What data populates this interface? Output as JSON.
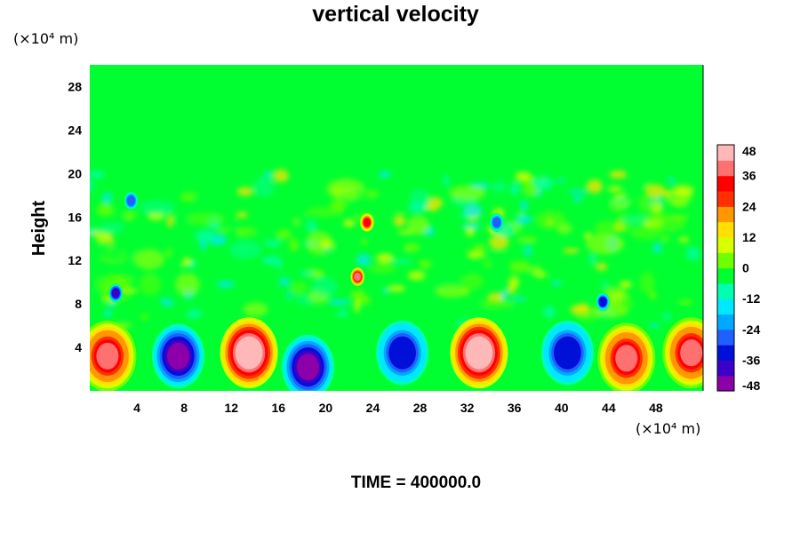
{
  "chart_data": {
    "type": "heatmap",
    "title": "vertical velocity",
    "ylabel": "Height",
    "y_unit_label": "(×10⁴ m)",
    "x_unit_label": "(×10⁴ m)",
    "xlim": [
      0,
      52
    ],
    "ylim": [
      0,
      30
    ],
    "xticks": [
      4,
      8,
      12,
      16,
      20,
      24,
      28,
      32,
      36,
      40,
      44,
      48
    ],
    "yticks": [
      4,
      8,
      12,
      16,
      20,
      24,
      28
    ],
    "colorbar": {
      "range": [
        -48,
        48
      ],
      "ticks": [
        48,
        36,
        24,
        12,
        0,
        -12,
        -24,
        -36,
        -48
      ],
      "colors": [
        "#8b00a8",
        "#3c00c8",
        "#0010d8",
        "#2060ff",
        "#00a8ff",
        "#00e8ff",
        "#00ffb0",
        "#00ff30",
        "#70ff00",
        "#d8ff00",
        "#ffe000",
        "#ff9800",
        "#ff3000",
        "#ff0000",
        "#ff7070",
        "#ffb8b8"
      ]
    },
    "features": [
      {
        "kind": "updraft",
        "x": 1.5,
        "y": 3.2,
        "peak": 36
      },
      {
        "kind": "downdraft",
        "x": 7.5,
        "y": 3.2,
        "peak": -48
      },
      {
        "kind": "updraft",
        "x": 13.5,
        "y": 3.5,
        "peak": 48
      },
      {
        "kind": "downdraft",
        "x": 18.5,
        "y": 2.2,
        "peak": -48
      },
      {
        "kind": "downdraft",
        "x": 26.5,
        "y": 3.5,
        "peak": -36
      },
      {
        "kind": "updraft",
        "x": 33,
        "y": 3.5,
        "peak": 48
      },
      {
        "kind": "downdraft",
        "x": 40.5,
        "y": 3.5,
        "peak": -36
      },
      {
        "kind": "updraft",
        "x": 45.5,
        "y": 3.0,
        "peak": 36
      },
      {
        "kind": "updraft",
        "x": 51,
        "y": 3.5,
        "peak": 36
      },
      {
        "kind": "downdraft",
        "x": 2.2,
        "y": 9.0,
        "peak": -40
      },
      {
        "kind": "downdraft",
        "x": 3.5,
        "y": 17.5,
        "peak": -30
      },
      {
        "kind": "updraft",
        "x": 22.7,
        "y": 10.5,
        "peak": 36
      },
      {
        "kind": "updraft",
        "x": 23.5,
        "y": 15.5,
        "peak": 30
      },
      {
        "kind": "downdraft",
        "x": 34.5,
        "y": 15.5,
        "peak": -30
      },
      {
        "kind": "downdraft",
        "x": 43.5,
        "y": 8.2,
        "peak": -36
      }
    ],
    "grid": false,
    "legend": "right"
  },
  "footer": {
    "time_label": "TIME = 400000.0"
  }
}
